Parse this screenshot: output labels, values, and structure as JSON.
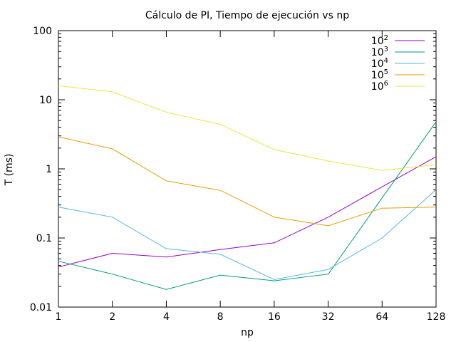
{
  "chart_data": {
    "type": "line",
    "title": "Cálculo de PI, Tiempo de ejecución vs np",
    "xlabel": "np",
    "ylabel": "T (ms)",
    "x_scale": "log2",
    "y_scale": "log10",
    "x": [
      1,
      2,
      4,
      8,
      16,
      32,
      64,
      128
    ],
    "x_tick_labels": [
      "1",
      "2",
      "4",
      "8",
      "16",
      "32",
      "64",
      "128"
    ],
    "y_ticks": [
      0.01,
      0.1,
      1,
      10,
      100
    ],
    "y_tick_labels": [
      "0.01",
      "0.1",
      "1",
      "10",
      "100"
    ],
    "xlim": [
      1,
      128
    ],
    "ylim": [
      0.01,
      100
    ],
    "grid": false,
    "legend_position": "top-right",
    "series": [
      {
        "name_base": "10",
        "name_exp": "2",
        "color": "#9400d3",
        "values": [
          0.038,
          0.06,
          0.053,
          0.068,
          0.085,
          0.2,
          0.55,
          1.5
        ]
      },
      {
        "name_base": "10",
        "name_exp": "3",
        "color": "#009e73",
        "values": [
          0.046,
          0.03,
          0.018,
          0.029,
          0.024,
          0.03,
          0.38,
          4.8
        ]
      },
      {
        "name_base": "10",
        "name_exp": "4",
        "color": "#56b4e9",
        "values": [
          0.28,
          0.2,
          0.07,
          0.058,
          0.025,
          0.035,
          0.1,
          0.5
        ]
      },
      {
        "name_base": "10",
        "name_exp": "5",
        "color": "#e69f00",
        "values": [
          2.9,
          1.95,
          0.67,
          0.49,
          0.2,
          0.15,
          0.27,
          0.28
        ]
      },
      {
        "name_base": "10",
        "name_exp": "6",
        "color": "#f0e442",
        "values": [
          16,
          13,
          6.6,
          4.4,
          1.9,
          1.3,
          0.95,
          1.15
        ]
      }
    ]
  }
}
